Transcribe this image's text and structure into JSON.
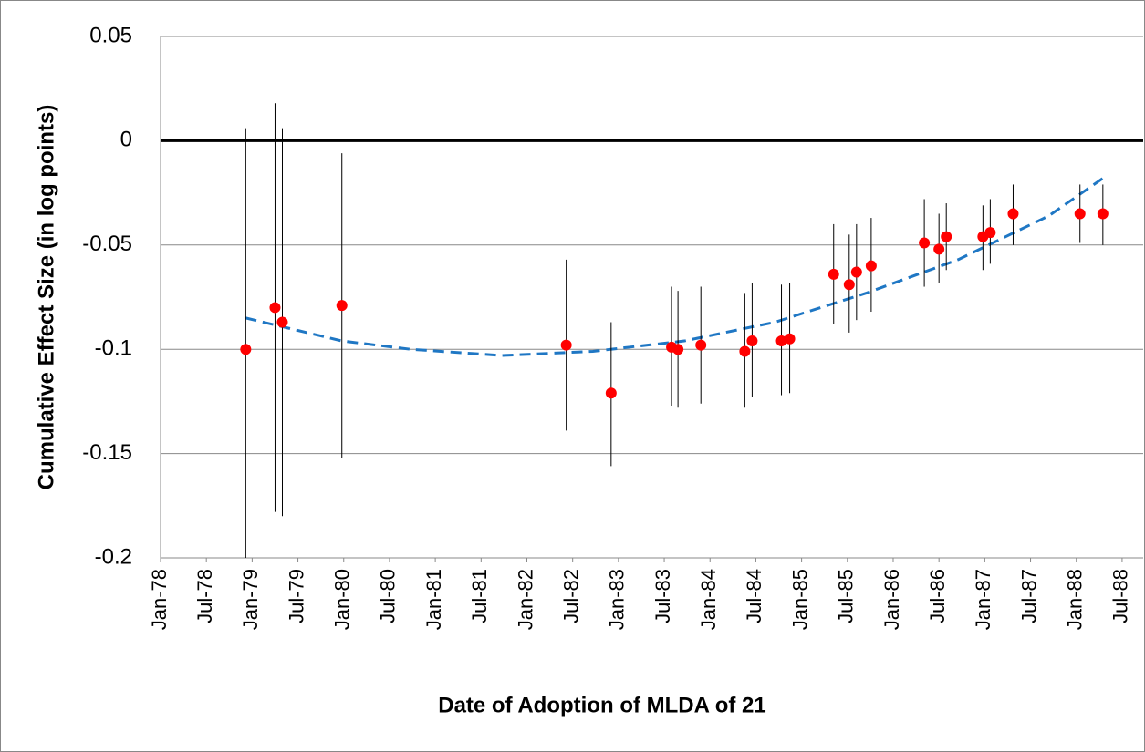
{
  "chart_data": {
    "type": "scatter",
    "xlabel": "Date of Adoption of MLDA of 21",
    "ylabel": "Cumulative Effect Size (in log points)",
    "x": [
      1978.93,
      1979.25,
      1979.33,
      1979.98,
      1982.43,
      1982.92,
      1983.58,
      1983.65,
      1983.9,
      1984.38,
      1984.46,
      1984.78,
      1984.87,
      1985.35,
      1985.52,
      1985.6,
      1985.76,
      1986.34,
      1986.5,
      1986.58,
      1986.98,
      1987.06,
      1987.31,
      1988.04,
      1988.29
    ],
    "values": [
      -0.1,
      -0.08,
      -0.087,
      -0.079,
      -0.098,
      -0.121,
      -0.099,
      -0.1,
      -0.098,
      -0.101,
      -0.096,
      -0.096,
      -0.095,
      -0.064,
      -0.069,
      -0.063,
      -0.06,
      -0.049,
      -0.052,
      -0.046,
      -0.046,
      -0.044,
      -0.035,
      -0.035,
      -0.035
    ],
    "lower": [
      -0.206,
      -0.178,
      -0.18,
      -0.152,
      -0.139,
      -0.156,
      -0.127,
      -0.128,
      -0.126,
      -0.128,
      -0.123,
      -0.122,
      -0.121,
      -0.088,
      -0.092,
      -0.086,
      -0.082,
      -0.07,
      -0.068,
      -0.062,
      -0.062,
      -0.059,
      -0.05,
      -0.049,
      -0.05
    ],
    "upper": [
      0.006,
      0.018,
      0.006,
      -0.006,
      -0.057,
      -0.087,
      -0.07,
      -0.072,
      -0.07,
      -0.073,
      -0.068,
      -0.069,
      -0.068,
      -0.04,
      -0.045,
      -0.04,
      -0.037,
      -0.028,
      -0.035,
      -0.03,
      -0.031,
      -0.028,
      -0.021,
      -0.021,
      -0.021
    ],
    "color": "#ff0000",
    "trend": {
      "color": "#1f77c4",
      "x": [
        1978.93,
        1979.98,
        1980.73,
        1981.73,
        1982.72,
        1983.72,
        1984.71,
        1985.71,
        1986.71,
        1987.7,
        1988.29
      ],
      "values": [
        -0.085,
        -0.096,
        -0.1,
        -0.103,
        -0.101,
        -0.096,
        -0.087,
        -0.073,
        -0.057,
        -0.036,
        -0.018
      ]
    },
    "xlim": [
      1978.0,
      1988.73
    ],
    "xticks": [
      {
        "value": 1978.0,
        "label": "Jan-78"
      },
      {
        "value": 1978.5,
        "label": "Jul-78"
      },
      {
        "value": 1979.0,
        "label": "Jan-79"
      },
      {
        "value": 1979.5,
        "label": "Jul-79"
      },
      {
        "value": 1980.0,
        "label": "Jan-80"
      },
      {
        "value": 1980.5,
        "label": "Jul-80"
      },
      {
        "value": 1981.0,
        "label": "Jan-81"
      },
      {
        "value": 1981.5,
        "label": "Jul-81"
      },
      {
        "value": 1982.0,
        "label": "Jan-82"
      },
      {
        "value": 1982.5,
        "label": "Jul-82"
      },
      {
        "value": 1983.0,
        "label": "Jan-83"
      },
      {
        "value": 1983.5,
        "label": "Jul-83"
      },
      {
        "value": 1984.0,
        "label": "Jan-84"
      },
      {
        "value": 1984.5,
        "label": "Jul-84"
      },
      {
        "value": 1985.0,
        "label": "Jan-85"
      },
      {
        "value": 1985.5,
        "label": "Jul-85"
      },
      {
        "value": 1986.0,
        "label": "Jan-86"
      },
      {
        "value": 1986.5,
        "label": "Jul-86"
      },
      {
        "value": 1987.0,
        "label": "Jan-87"
      },
      {
        "value": 1987.5,
        "label": "Jul-87"
      },
      {
        "value": 1988.0,
        "label": "Jan-88"
      },
      {
        "value": 1988.5,
        "label": "Jul-88"
      }
    ],
    "ylim": [
      -0.2,
      0.05
    ],
    "yticks": [
      0.05,
      0,
      -0.05,
      -0.1,
      -0.15,
      -0.2
    ],
    "grid": true,
    "zero_line": true
  }
}
